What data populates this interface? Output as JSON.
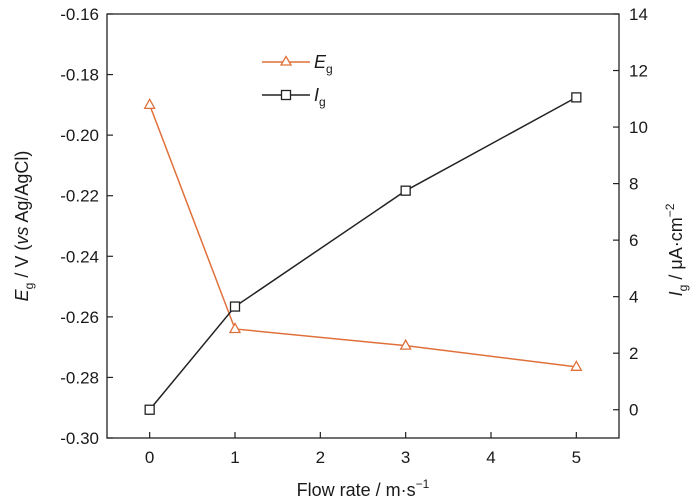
{
  "chart_data": {
    "type": "line",
    "x": [
      0,
      1,
      3,
      5
    ],
    "xlim": [
      -0.5,
      5.5
    ],
    "x_ticks": [
      0,
      1,
      2,
      3,
      4,
      5
    ],
    "x_tick_labels": [
      "0",
      "1",
      "2",
      "3",
      "4",
      "5"
    ],
    "xlabel": "Flow rate / m·s",
    "xlabel_superscript": "−1",
    "left_axis": {
      "ylim": [
        -0.3,
        -0.16
      ],
      "ticks": [
        -0.3,
        -0.28,
        -0.26,
        -0.24,
        -0.22,
        -0.2,
        -0.18,
        -0.16
      ],
      "tick_labels": [
        "-0.30",
        "-0.28",
        "-0.26",
        "-0.24",
        "-0.22",
        "-0.20",
        "-0.18",
        "-0.16"
      ],
      "label_symbol": "E",
      "label_subscript": "g",
      "label_part1": " / V (",
      "label_italic": "vs",
      "label_part2": " Ag/AgCl)"
    },
    "right_axis": {
      "ylim": [
        -1,
        14
      ],
      "ticks": [
        0,
        2,
        4,
        6,
        8,
        10,
        12,
        14
      ],
      "tick_labels": [
        "0",
        "2",
        "4",
        "6",
        "8",
        "10",
        "12",
        "14"
      ],
      "label_symbol": "I",
      "label_subscript": "g",
      "label_part1": " / μA·cm",
      "label_superscript": "−2"
    },
    "series": [
      {
        "name_symbol": "E",
        "name_subscript": "g",
        "axis": "left",
        "marker": "triangle",
        "color": "#e0703a",
        "values": [
          -0.19,
          -0.264,
          -0.2695,
          -0.2765
        ]
      },
      {
        "name_symbol": "I",
        "name_subscript": "g",
        "axis": "right",
        "marker": "square",
        "color": "#222222",
        "values": [
          0.0,
          3.65,
          7.75,
          11.05
        ]
      }
    ],
    "legend_position": "top-center",
    "grid": false
  }
}
